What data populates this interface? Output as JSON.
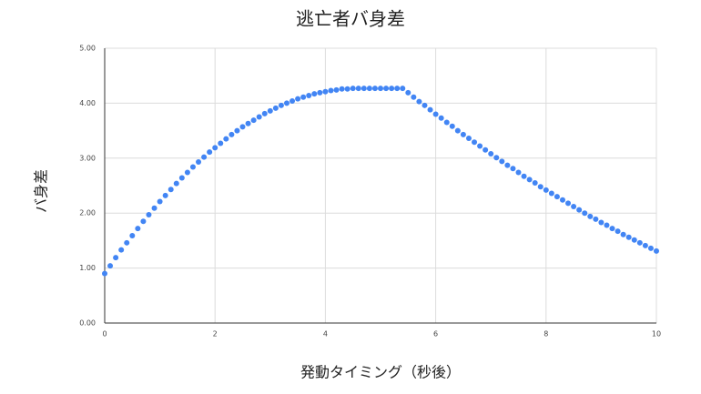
{
  "chart_data": {
    "type": "scatter",
    "title": "逃亡者バ身差",
    "x_label": "発動タイミング（秒後）",
    "y_label": "バ身差",
    "x": [
      0,
      0.1,
      0.2,
      0.3,
      0.4,
      0.5,
      0.6,
      0.7,
      0.8,
      0.9,
      1,
      1.1,
      1.2,
      1.3,
      1.4,
      1.5,
      1.6,
      1.7,
      1.8,
      1.9,
      2,
      2.1,
      2.2,
      2.3,
      2.4,
      2.5,
      2.6,
      2.7,
      2.8,
      2.9,
      3,
      3.1,
      3.2,
      3.3,
      3.4,
      3.5,
      3.6,
      3.7,
      3.8,
      3.9,
      4,
      4.1,
      4.2,
      4.3,
      4.4,
      4.5,
      4.6,
      4.7,
      4.8,
      4.9,
      5,
      5.1,
      5.2,
      5.3,
      5.4,
      5.5,
      5.6,
      5.7,
      5.8,
      5.9,
      6,
      6.1,
      6.2,
      6.3,
      6.4,
      6.5,
      6.6,
      6.7,
      6.8,
      6.9,
      7,
      7.1,
      7.2,
      7.3,
      7.4,
      7.5,
      7.6,
      7.7,
      7.8,
      7.9,
      8,
      8.1,
      8.2,
      8.3,
      8.4,
      8.5,
      8.6,
      8.7,
      8.8,
      8.9,
      9,
      9.1,
      9.2,
      9.3,
      9.4,
      9.5,
      9.6,
      9.7,
      9.8,
      9.9,
      10
    ],
    "series": [
      {
        "name": "バ身差",
        "color": "#4285f4",
        "values": [
          0.9,
          1.04,
          1.19,
          1.33,
          1.46,
          1.59,
          1.72,
          1.85,
          1.97,
          2.09,
          2.21,
          2.32,
          2.43,
          2.54,
          2.64,
          2.74,
          2.84,
          2.93,
          3.02,
          3.11,
          3.19,
          3.27,
          3.35,
          3.43,
          3.5,
          3.57,
          3.63,
          3.69,
          3.75,
          3.81,
          3.86,
          3.91,
          3.96,
          4.0,
          4.04,
          4.08,
          4.11,
          4.14,
          4.17,
          4.19,
          4.21,
          4.23,
          4.24,
          4.26,
          4.26,
          4.27,
          4.27,
          4.27,
          4.27,
          4.27,
          4.27,
          4.27,
          4.27,
          4.27,
          4.27,
          4.19,
          4.11,
          4.03,
          3.96,
          3.88,
          3.8,
          3.73,
          3.65,
          3.58,
          3.5,
          3.43,
          3.36,
          3.29,
          3.22,
          3.15,
          3.08,
          3.01,
          2.94,
          2.87,
          2.81,
          2.74,
          2.67,
          2.61,
          2.55,
          2.48,
          2.42,
          2.36,
          2.3,
          2.24,
          2.18,
          2.12,
          2.06,
          2.0,
          1.94,
          1.89,
          1.83,
          1.78,
          1.72,
          1.67,
          1.61,
          1.56,
          1.51,
          1.46,
          1.41,
          1.36,
          1.31
        ]
      }
    ],
    "xlim": [
      0,
      10
    ],
    "xticks": [
      0,
      2,
      4,
      6,
      8,
      10
    ],
    "ylim": [
      0,
      5
    ],
    "yticks": [
      {
        "value": 0,
        "label": "0.00"
      },
      {
        "value": 1,
        "label": "1.00"
      },
      {
        "value": 2,
        "label": "2.00"
      },
      {
        "value": 3,
        "label": "3.00"
      },
      {
        "value": 4,
        "label": "4.00"
      },
      {
        "value": 5,
        "label": "5.00"
      }
    ],
    "grid": true
  }
}
